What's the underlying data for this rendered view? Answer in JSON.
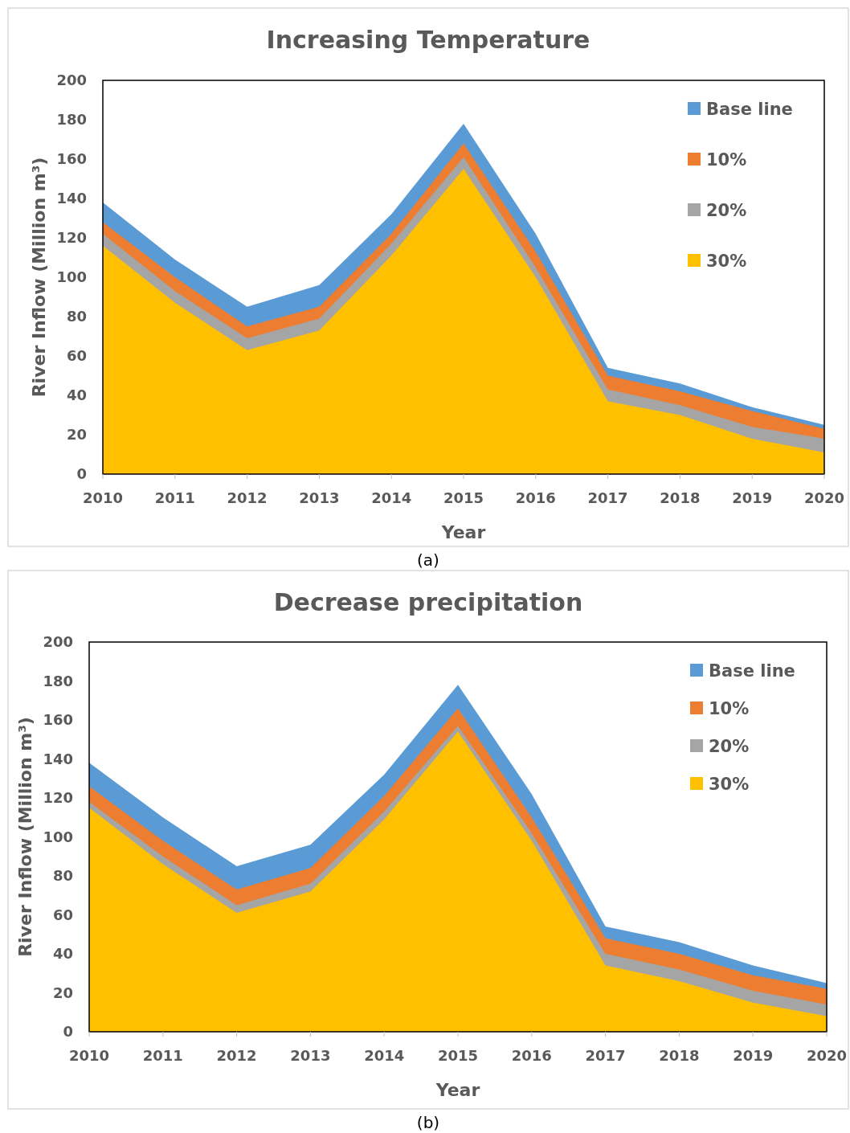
{
  "chart_data": [
    {
      "type": "area",
      "title": "Increasing Temperature",
      "xlabel": "Year",
      "ylabel": "River Inflow (Million m³)",
      "categories": [
        "2010",
        "2011",
        "2012",
        "2013",
        "2014",
        "2015",
        "2016",
        "2017",
        "2018",
        "2019",
        "2020"
      ],
      "ylim": [
        0,
        200
      ],
      "yticks": [
        0,
        20,
        40,
        60,
        80,
        100,
        120,
        140,
        160,
        180,
        200
      ],
      "grid": false,
      "legend": "top right",
      "annotations": [
        "(a)"
      ],
      "series": [
        {
          "name": "Base line",
          "color": "#5b9bd5",
          "values": [
            138,
            109,
            85,
            96,
            132,
            178,
            122,
            54,
            46,
            34,
            25
          ]
        },
        {
          "name": "10%",
          "color": "#ed7d31",
          "values": [
            128,
            100,
            75,
            85,
            122,
            168,
            113,
            50,
            42,
            32,
            23
          ]
        },
        {
          "name": "20%",
          "color": "#a5a5a5",
          "values": [
            122,
            93,
            69,
            79,
            117,
            161,
            105,
            43,
            35,
            24,
            18
          ]
        },
        {
          "name": "30%",
          "color": "#ffc000",
          "values": [
            116,
            87,
            63,
            73,
            111,
            155,
            100,
            37,
            30,
            18,
            11
          ]
        }
      ]
    },
    {
      "type": "area",
      "title": "Decrease precipitation",
      "xlabel": "Year",
      "ylabel": "River Inflow (Million m³)",
      "categories": [
        "2010",
        "2011",
        "2012",
        "2013",
        "2014",
        "2015",
        "2016",
        "2017",
        "2018",
        "2019",
        "2020"
      ],
      "ylim": [
        0,
        200
      ],
      "yticks": [
        0,
        20,
        40,
        60,
        80,
        100,
        120,
        140,
        160,
        180,
        200
      ],
      "grid": false,
      "legend": "top right",
      "annotations": [
        "(b)"
      ],
      "series": [
        {
          "name": "Base line",
          "color": "#5b9bd5",
          "values": [
            138,
            110,
            85,
            96,
            132,
            178,
            122,
            54,
            46,
            34,
            25
          ]
        },
        {
          "name": "10%",
          "color": "#ed7d31",
          "values": [
            126,
            98,
            73,
            84,
            121,
            166,
            110,
            48,
            40,
            29,
            22
          ]
        },
        {
          "name": "20%",
          "color": "#a5a5a5",
          "values": [
            118,
            90,
            65,
            76,
            113,
            157,
            102,
            40,
            32,
            21,
            14
          ]
        },
        {
          "name": "30%",
          "color": "#ffc000",
          "values": [
            115,
            86,
            61,
            72,
            109,
            154,
            98,
            34,
            26,
            15,
            8
          ]
        }
      ]
    }
  ]
}
